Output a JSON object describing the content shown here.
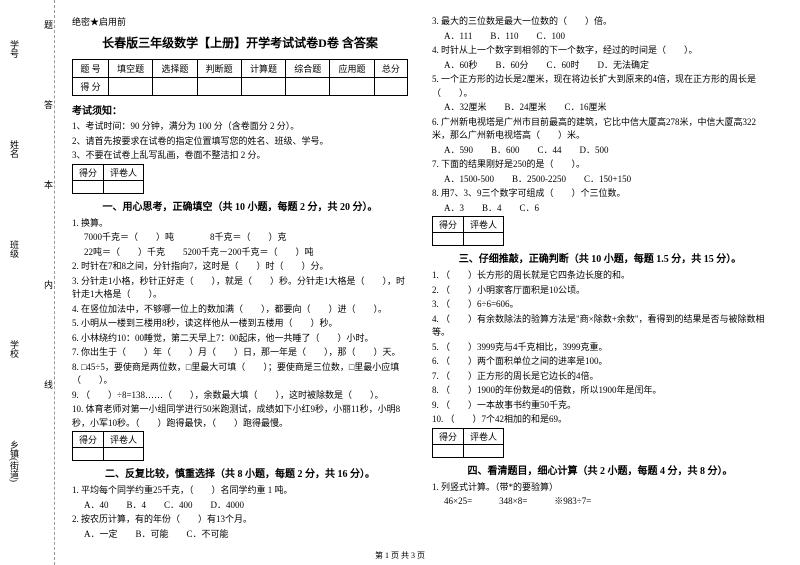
{
  "binding": {
    "label1": "学号",
    "label2": "姓名",
    "label3": "班级",
    "label4": "学校",
    "label5": "乡镇(街道)",
    "char1": "题",
    "char2": "答",
    "char3": "本",
    "char4": "内",
    "char5": "线",
    "char6": "封"
  },
  "header": {
    "secret": "绝密★启用前",
    "title": "长春版三年级数学【上册】开学考试试卷D卷 含答案"
  },
  "scoreTable": {
    "h1": "题 号",
    "h2": "填空题",
    "h3": "选择题",
    "h4": "判断题",
    "h5": "计算题",
    "h6": "综合题",
    "h7": "应用题",
    "h8": "总分",
    "r1": "得 分"
  },
  "notice": {
    "title": "考试须知：",
    "n1": "1、考试时间：90 分钟，满分为 100 分（含卷面分 2 分）。",
    "n2": "2、请首先按要求在试卷的指定位置填写您的姓名、班级、学号。",
    "n3": "3、不要在试卷上乱写乱画，卷面不整洁扣 2 分。"
  },
  "mini": {
    "c1": "得分",
    "c2": "评卷人"
  },
  "s1": {
    "title": "一、用心思考，正确填空（共 10 小题，每题 2 分，共 20 分）。",
    "q1": "1. 换算。",
    "q1a": "7000千克＝（　　）吨　　　　8千克＝（　　）克",
    "q1b": "22吨＝（　　）千克　　5200千克－200千克＝（　　）吨",
    "q2": "2. 时针在7和8之间，分针指向7，这时是（　　）时（　　）分。",
    "q3": "3. 分针走1小格，秒针正好走（　　），就是（　　）秒。分针走1大格是（　　），时针走1大格是（　　）。",
    "q4": "4. 在竖位加法中，不够哪一位上的数加满（　　），都要向（　　）进（　　）。",
    "q5": "5. 小明从一楼到三楼用8秒，读这样他从一楼到五楼用（　　）秒。",
    "q6": "6. 小林绕约10：00睡觉，第二天早上7：00起床，他一共睡了（　　）小时。",
    "q7": "7. 你出生于（　　）年（　　）月（　　）日，那一年是（　　），那（　　）天。",
    "q8": "8. □45÷5，要使商是两位数，□里最大可填（　　）；要使商是三位数，□里最小应填（　　）。",
    "q9": "9. （　　）÷8=138……（　　），余数最大填（　　），这时被除数是（　　）。",
    "q10": "10. 体育老师对第一小组同学进行50米跑测试，成绩如下小红9秒，小丽11秒，小明8秒，小军10秒。（　　）跑得最快，（　　）跑得最慢。"
  },
  "s2": {
    "title": "二、反复比较，慎重选择（共 8 小题，每题 2 分，共 16 分）。",
    "q1": "1. 平均每个同学约重25千克，（　　）名同学约重 1 吨。",
    "q1o": "A．40　　B．4　　C．400　　D．4000",
    "q2": "2. 按农历计算，有的年份（　　）有13个月。",
    "q2o": "A．一定　　B．可能　　C．不可能",
    "q3": "3. 最大的三位数是最大一位数的（　　）倍。",
    "q3o": "A．111　　B．110　　C．100",
    "q4": "4. 时针从上一个数字到相邻的下一个数字，经过的时间是（　　）。",
    "q4o": "A．60秒　　B．60分　　C．60时　　D．无法确定",
    "q5": "5. 一个正方形的边长是2厘米，现在将边长扩大到原来的4倍，现在正方形的周长是（　　）。",
    "q5o": "A．32厘米　　B．24厘米　　C．16厘米",
    "q6": "6. 广州新电视塔是广州市目前最高的建筑，它比中信大厦高278米，中信大厦高322米，那么广州新电视塔高（　　）米。",
    "q6o": "A．590　　B．600　　C．44　　D．500",
    "q7": "7. 下面的结果刚好是250的是（　　）。",
    "q7o": "A．1500-500　　B．2500-2250　　C．150+150",
    "q8": "8. 用7、3、9三个数字可组成（　　）个三位数。",
    "q8o": "A．3　　B．4　　C．6"
  },
  "s3": {
    "title": "三、仔细推敲，正确判断（共 10 小题，每题 1.5 分，共 15 分）。",
    "q1": "1. （　　）长方形的周长就是它四条边长度的和。",
    "q2": "2. （　　）小明家客厅面积是10公顷。",
    "q3": "3. （　　）6÷6=606。",
    "q4": "4. （　　）有余数除法的验算方法是\"商×除数+余数\"，看得到的结果是否与被除数相等。",
    "q5": "5. （　　）3999克与4千克相比，3999克重。",
    "q6": "6. （　　）两个面积单位之间的进率是100。",
    "q7": "7. （　　）正方形的周长是它边长的4倍。",
    "q8": "8. （　　）1900的年份数是4的倍数，所以1900年是闰年。",
    "q9": "9. （　　）一本故事书约重50千克。",
    "q10": "10. （　　）7个42相加的和是69。"
  },
  "s4": {
    "title": "四、看清题目，细心计算（共 2 小题，每题 4 分，共 8 分）。",
    "q1": "1. 列竖式计算。（带*的要验算）",
    "q1a": "46×25=　　　348×8=　　　※983÷7="
  },
  "footer": "第 1 页 共 3 页"
}
